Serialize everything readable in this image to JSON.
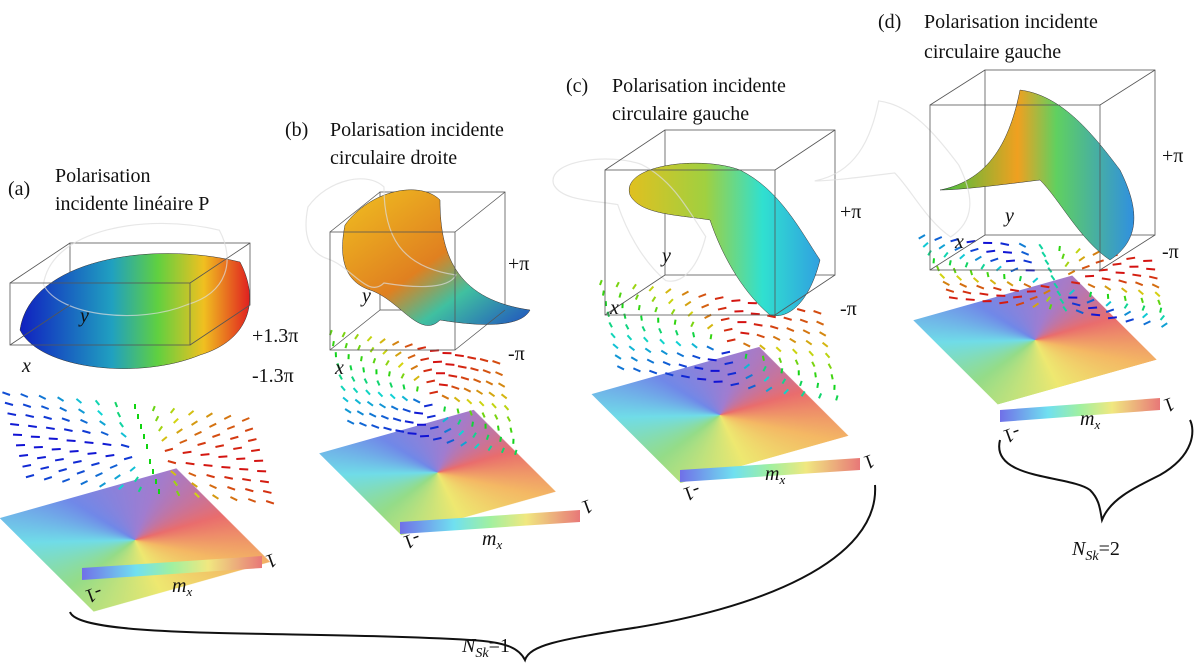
{
  "panels": [
    {
      "label": "(a)",
      "title": [
        "Polarisation",
        "incidente linéaire P"
      ],
      "axes": {
        "x": "x",
        "y": "y",
        "top": "+1.3π",
        "bottom": "-1.3π"
      },
      "colorbar": {
        "min": "-1",
        "max": "1",
        "label": "m",
        "label_sub": "x"
      }
    },
    {
      "label": "(b)",
      "title": [
        "Polarisation incidente",
        "circulaire droite"
      ],
      "axes": {
        "x": "x",
        "y": "y",
        "top": "+π",
        "bottom": "-π"
      },
      "colorbar": {
        "min": "-1",
        "max": "1",
        "label": "m",
        "label_sub": "x"
      }
    },
    {
      "label": "(c)",
      "title": [
        "Polarisation incidente",
        "circulaire gauche"
      ],
      "axes": {
        "x": "x",
        "y": "y",
        "top": "+π",
        "bottom": "-π"
      },
      "colorbar": {
        "min": "-1",
        "max": "1",
        "label": "m",
        "label_sub": "x"
      }
    },
    {
      "label": "(d)",
      "title": [
        "Polarisation incidente",
        "circulaire gauche"
      ],
      "axes": {
        "x": "x",
        "y": "y",
        "top": "+π",
        "bottom": "-π"
      },
      "colorbar": {
        "min": "-1",
        "max": "1",
        "label": "m",
        "label_sub": "x"
      }
    }
  ],
  "groups": [
    {
      "symbol": "N",
      "subscript": "Sk",
      "value": "=1"
    },
    {
      "symbol": "N",
      "subscript": "Sk",
      "value": "=2"
    }
  ]
}
